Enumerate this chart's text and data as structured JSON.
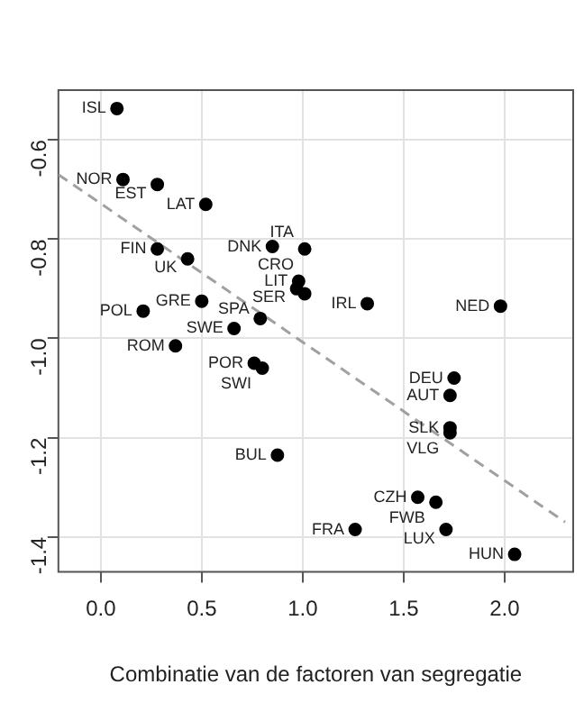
{
  "chart_data": {
    "type": "scatter",
    "xlabel": "Combinatie van de factoren van segregatie",
    "xlim": [
      -0.21,
      2.34
    ],
    "ylim": [
      -1.47,
      -0.5
    ],
    "xticks": [
      {
        "value": 0,
        "label": "0.0"
      },
      0.5,
      {
        "value": 1,
        "label": "1.0"
      },
      1.5,
      {
        "value": 2,
        "label": "2.0"
      }
    ],
    "yticks": [
      -0.6,
      -0.8,
      {
        "value": -1,
        "label": "-1.0"
      },
      -1.2,
      -1.4
    ],
    "grid": true,
    "legend": false,
    "marker": "circle",
    "series": [
      {
        "type": "scatter",
        "color": "#000000",
        "x": [
          0.08,
          0.11,
          0.28,
          0.52,
          0.28,
          0.43,
          0.85,
          1.01,
          0.98,
          0.97,
          1.01,
          1.32,
          1.98,
          0.21,
          0.5,
          0.79,
          0.66,
          0.37,
          0.76,
          0.8,
          1.75,
          1.73,
          1.73,
          1.73,
          0.875,
          1.57,
          1.66,
          1.26,
          1.71,
          2.05
        ],
        "values": [
          -0.537,
          -0.68,
          -0.69,
          -0.73,
          -0.82,
          -0.84,
          -0.815,
          -0.82,
          -0.885,
          -0.9,
          -0.91,
          -0.93,
          -0.935,
          -0.945,
          -0.925,
          -0.96,
          -0.98,
          -1.015,
          -1.05,
          -1.06,
          -1.08,
          -1.115,
          -1.18,
          -1.19,
          -1.235,
          -1.32,
          -1.33,
          -1.385,
          -1.385,
          -1.435
        ]
      },
      {
        "type": "line",
        "color": "#a0a0a0",
        "line_style": "dashed",
        "marker": "none",
        "x": [
          -0.21,
          2.3
        ],
        "values": [
          -0.67,
          -1.37
        ]
      }
    ],
    "annotations": [
      {
        "text": "ISL",
        "x": 0.08,
        "y": -0.537
      },
      {
        "text": "NOR",
        "x": 0.11,
        "y": -0.68
      },
      {
        "text": "EST",
        "x": 0.28,
        "y": -0.69
      },
      {
        "text": "LAT",
        "x": 0.52,
        "y": -0.73
      },
      {
        "text": "FIN",
        "x": 0.28,
        "y": -0.82
      },
      {
        "text": "UK",
        "x": 0.43,
        "y": -0.84
      },
      {
        "text": "DNK",
        "x": 0.85,
        "y": -0.815
      },
      {
        "text": "ITA",
        "x": 1.01,
        "y": -0.82
      },
      {
        "text": "LIT",
        "x": 0.98,
        "y": -0.885
      },
      {
        "text": "SER",
        "x": 0.97,
        "y": -0.9
      },
      {
        "text": "CRO",
        "x": 1.01,
        "y": -0.91
      },
      {
        "text": "IRL",
        "x": 1.32,
        "y": -0.93
      },
      {
        "text": "NED",
        "x": 1.98,
        "y": -0.935
      },
      {
        "text": "POL",
        "x": 0.21,
        "y": -0.945
      },
      {
        "text": "GRE",
        "x": 0.5,
        "y": -0.925
      },
      {
        "text": "SPA",
        "x": 0.79,
        "y": -0.96
      },
      {
        "text": "SWE",
        "x": 0.66,
        "y": -0.98
      },
      {
        "text": "ROM",
        "x": 0.37,
        "y": -1.015
      },
      {
        "text": "POR",
        "x": 0.76,
        "y": -1.05
      },
      {
        "text": "SWI",
        "x": 0.8,
        "y": -1.06
      },
      {
        "text": "DEU",
        "x": 1.75,
        "y": -1.08
      },
      {
        "text": "AUT",
        "x": 1.73,
        "y": -1.115
      },
      {
        "text": "SLK",
        "x": 1.73,
        "y": -1.18
      },
      {
        "text": "VLG",
        "x": 1.73,
        "y": -1.19
      },
      {
        "text": "BUL",
        "x": 0.875,
        "y": -1.235
      },
      {
        "text": "CZH",
        "x": 1.57,
        "y": -1.32
      },
      {
        "text": "FWB",
        "x": 1.66,
        "y": -1.33
      },
      {
        "text": "FRA",
        "x": 1.26,
        "y": -1.385
      },
      {
        "text": "LUX",
        "x": 1.71,
        "y": -1.385
      },
      {
        "text": "HUN",
        "x": 2.05,
        "y": -1.435
      }
    ]
  }
}
